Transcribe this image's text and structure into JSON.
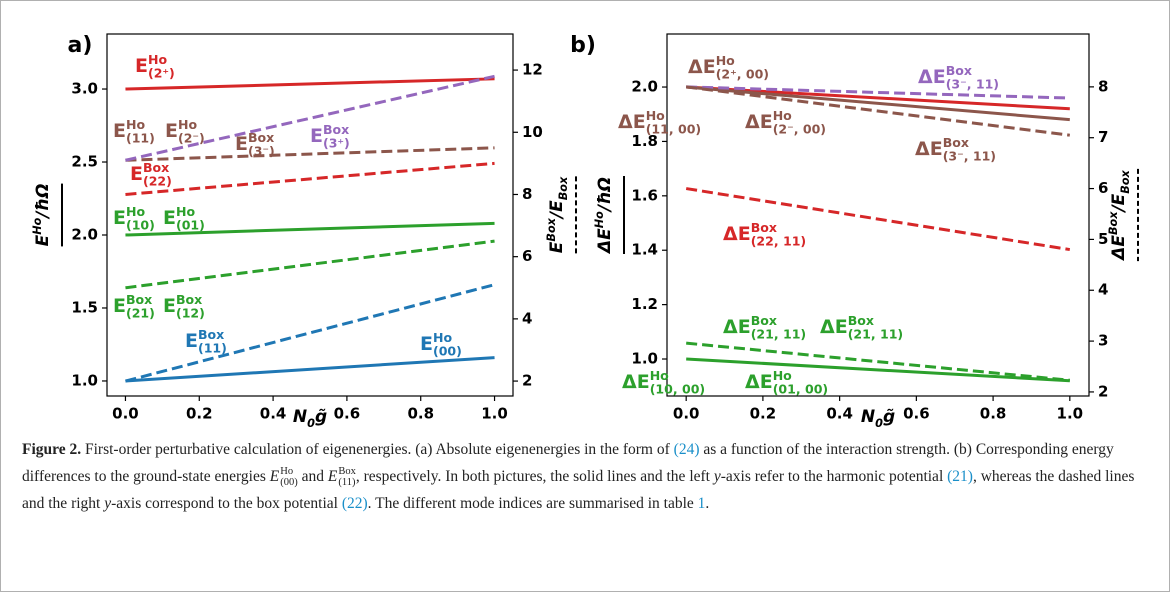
{
  "chart_data": [
    {
      "type": "line",
      "panel": "a)",
      "xlabel": [
        {
          "text": "N"
        },
        {
          "text": "0",
          "pos": "sub"
        },
        {
          "text": "g̃"
        }
      ],
      "ylabel": [
        {
          "text": "E"
        },
        {
          "text": "Ho",
          "pos": "sup"
        },
        {
          "text": "/ħΩ"
        }
      ],
      "y2label": [
        {
          "text": "E"
        },
        {
          "text": "Box",
          "pos": "sup"
        },
        {
          "text": "/E"
        },
        {
          "text": "Box",
          "pos": "sub"
        }
      ],
      "xlim": [
        -0.05,
        1.05
      ],
      "xticks": [
        {
          "value": 0,
          "label": "0.0"
        },
        0.2,
        0.4,
        0.6,
        0.8,
        {
          "value": 1,
          "label": "1.0"
        }
      ],
      "ylim": [
        0.897,
        3.377
      ],
      "yticks": [
        {
          "value": 1,
          "label": "1.0"
        },
        1.5,
        {
          "value": 2,
          "label": "2.0"
        },
        2.5,
        {
          "value": 3,
          "label": "3.0"
        }
      ],
      "y2lim": [
        1.52,
        13.16
      ],
      "y2ticks": [
        2,
        4,
        6,
        8,
        10,
        12
      ],
      "series": [
        {
          "x": [
            0,
            1
          ],
          "values": [
            3.0,
            3.07
          ],
          "color": "#d62728",
          "style": "solid",
          "axis": "y"
        },
        {
          "x": [
            0,
            1
          ],
          "values": [
            9.1,
            9.5
          ],
          "color": "#8c564b",
          "style": "dashed",
          "axis": "y2"
        },
        {
          "x": [
            0,
            1
          ],
          "values": [
            9.1,
            11.8
          ],
          "color": "#9467bd",
          "style": "dashed",
          "axis": "y2"
        },
        {
          "x": [
            0,
            1
          ],
          "values": [
            8.0,
            9.0
          ],
          "color": "#d62728",
          "style": "dashed",
          "axis": "y2"
        },
        {
          "x": [
            0,
            1
          ],
          "values": [
            2.0,
            2.08
          ],
          "color": "#2ca02c",
          "style": "solid",
          "axis": "y"
        },
        {
          "x": [
            0,
            1
          ],
          "values": [
            5.0,
            6.5
          ],
          "color": "#2ca02c",
          "style": "dashed",
          "axis": "y2"
        },
        {
          "x": [
            0,
            1
          ],
          "values": [
            2.0,
            5.1
          ],
          "color": "#1f77b4",
          "style": "dashed",
          "axis": "y2"
        },
        {
          "x": [
            0,
            1
          ],
          "values": [
            1.0,
            1.16
          ],
          "color": "#1f77b4",
          "style": "solid",
          "axis": "y"
        }
      ],
      "annotations": [
        {
          "color": "#d62728",
          "runs": [
            {
              "text": "E"
            },
            {
              "text": "Ho",
              "pos": "sup"
            },
            {
              "text": "(2⁺)",
              "pos": "sub"
            }
          ]
        },
        {
          "color": "#8c564b",
          "runs": [
            {
              "text": "E"
            },
            {
              "text": "Ho",
              "pos": "sup"
            },
            {
              "text": "(11)",
              "pos": "sub"
            }
          ]
        },
        {
          "color": "#8c564b",
          "runs": [
            {
              "text": "E"
            },
            {
              "text": "Ho",
              "pos": "sup"
            },
            {
              "text": "(2⁻)",
              "pos": "sub"
            }
          ]
        },
        {
          "color": "#8c564b",
          "runs": [
            {
              "text": "E"
            },
            {
              "text": "Box",
              "pos": "sup"
            },
            {
              "text": "(3⁻)",
              "pos": "sub"
            }
          ]
        },
        {
          "color": "#9467bd",
          "runs": [
            {
              "text": "E"
            },
            {
              "text": "Box",
              "pos": "sup"
            },
            {
              "text": "(3⁺)",
              "pos": "sub"
            }
          ]
        },
        {
          "color": "#d62728",
          "runs": [
            {
              "text": "E"
            },
            {
              "text": "Box",
              "pos": "sup"
            },
            {
              "text": "(22)",
              "pos": "sub"
            }
          ]
        },
        {
          "color": "#2ca02c",
          "runs": [
            {
              "text": "E"
            },
            {
              "text": "Ho",
              "pos": "sup"
            },
            {
              "text": "(10)",
              "pos": "sub"
            }
          ]
        },
        {
          "color": "#2ca02c",
          "runs": [
            {
              "text": "E"
            },
            {
              "text": "Ho",
              "pos": "sup"
            },
            {
              "text": "(01)",
              "pos": "sub"
            }
          ]
        },
        {
          "color": "#2ca02c",
          "runs": [
            {
              "text": "E"
            },
            {
              "text": "Box",
              "pos": "sup"
            },
            {
              "text": "(21)",
              "pos": "sub"
            }
          ]
        },
        {
          "color": "#2ca02c",
          "runs": [
            {
              "text": "E"
            },
            {
              "text": "Box",
              "pos": "sup"
            },
            {
              "text": "(12)",
              "pos": "sub"
            }
          ]
        },
        {
          "color": "#1f77b4",
          "runs": [
            {
              "text": "E"
            },
            {
              "text": "Box",
              "pos": "sup"
            },
            {
              "text": "(11)",
              "pos": "sub"
            }
          ]
        },
        {
          "color": "#1f77b4",
          "runs": [
            {
              "text": "E"
            },
            {
              "text": "Ho",
              "pos": "sup"
            },
            {
              "text": "(00)",
              "pos": "sub"
            }
          ]
        }
      ]
    },
    {
      "type": "line",
      "panel": "b)",
      "xlabel": [
        {
          "text": "N"
        },
        {
          "text": "0",
          "pos": "sub"
        },
        {
          "text": "g̃"
        }
      ],
      "ylabel": [
        {
          "text": "ΔE"
        },
        {
          "text": "Ho",
          "pos": "sup"
        },
        {
          "text": "/ħΩ"
        }
      ],
      "y2label": [
        {
          "text": "ΔE"
        },
        {
          "text": "Box",
          "pos": "sup"
        },
        {
          "text": "/E"
        },
        {
          "text": "Box",
          "pos": "sub"
        }
      ],
      "xlim": [
        -0.05,
        1.05
      ],
      "xticks": [
        {
          "value": 0,
          "label": "0.0"
        },
        0.2,
        0.4,
        0.6,
        0.8,
        {
          "value": 1,
          "label": "1.0"
        }
      ],
      "ylim": [
        0.864,
        2.195
      ],
      "yticks": [
        {
          "value": 1,
          "label": "1.0"
        },
        1.2,
        1.4,
        1.6,
        1.8,
        {
          "value": 2,
          "label": "2.0"
        }
      ],
      "y2lim": [
        1.92,
        9.04
      ],
      "y2ticks": [
        2,
        3,
        4,
        5,
        6,
        7,
        8
      ],
      "series": [
        {
          "x": [
            0,
            1
          ],
          "values": [
            2.0,
            1.92
          ],
          "color": "#d62728",
          "style": "solid",
          "axis": "y"
        },
        {
          "x": [
            0,
            1
          ],
          "values": [
            2.0,
            1.88
          ],
          "color": "#8c564b",
          "style": "solid",
          "axis": "y"
        },
        {
          "x": [
            0,
            1
          ],
          "values": [
            8.0,
            7.78
          ],
          "color": "#9467bd",
          "style": "dashed",
          "axis": "y2"
        },
        {
          "x": [
            0,
            1
          ],
          "values": [
            8.0,
            7.05
          ],
          "color": "#8c564b",
          "style": "dashed",
          "axis": "y2"
        },
        {
          "x": [
            0,
            1
          ],
          "values": [
            6.0,
            4.8
          ],
          "color": "#d62728",
          "style": "dashed",
          "axis": "y2"
        },
        {
          "x": [
            0,
            1
          ],
          "values": [
            2.96,
            2.23
          ],
          "color": "#2ca02c",
          "style": "dashed",
          "axis": "y2"
        },
        {
          "x": [
            0,
            1
          ],
          "values": [
            1.0,
            0.92
          ],
          "color": "#2ca02c",
          "style": "solid",
          "axis": "y"
        }
      ],
      "annotations": [
        {
          "color": "#8c564b",
          "runs": [
            {
              "text": "ΔE"
            },
            {
              "text": "Ho",
              "pos": "sup"
            },
            {
              "text": "(2⁺, 00)",
              "pos": "sub"
            }
          ]
        },
        {
          "color": "#9467bd",
          "runs": [
            {
              "text": "ΔE"
            },
            {
              "text": "Box",
              "pos": "sup"
            },
            {
              "text": "(3⁻, 11)",
              "pos": "sub"
            }
          ]
        },
        {
          "color": "#8c564b",
          "runs": [
            {
              "text": "ΔE"
            },
            {
              "text": "Ho",
              "pos": "sup"
            },
            {
              "text": "(11, 00)",
              "pos": "sub"
            }
          ]
        },
        {
          "color": "#8c564b",
          "runs": [
            {
              "text": "ΔE"
            },
            {
              "text": "Ho",
              "pos": "sup"
            },
            {
              "text": "(2⁻, 00)",
              "pos": "sub"
            }
          ]
        },
        {
          "color": "#8c564b",
          "runs": [
            {
              "text": "ΔE"
            },
            {
              "text": "Box",
              "pos": "sup"
            },
            {
              "text": "(3⁻, 11)",
              "pos": "sub"
            }
          ]
        },
        {
          "color": "#d62728",
          "runs": [
            {
              "text": "ΔE"
            },
            {
              "text": "Box",
              "pos": "sup"
            },
            {
              "text": "(22, 11)",
              "pos": "sub"
            }
          ]
        },
        {
          "color": "#2ca02c",
          "runs": [
            {
              "text": "ΔE"
            },
            {
              "text": "Box",
              "pos": "sup"
            },
            {
              "text": "(21, 11)",
              "pos": "sub"
            }
          ]
        },
        {
          "color": "#2ca02c",
          "runs": [
            {
              "text": "ΔE"
            },
            {
              "text": "Box",
              "pos": "sup"
            },
            {
              "text": "(21, 11)",
              "pos": "sub"
            }
          ]
        },
        {
          "color": "#2ca02c",
          "runs": [
            {
              "text": "ΔE"
            },
            {
              "text": "Ho",
              "pos": "sup"
            },
            {
              "text": "(10, 00)",
              "pos": "sub"
            }
          ]
        },
        {
          "color": "#2ca02c",
          "runs": [
            {
              "text": "ΔE"
            },
            {
              "text": "Ho",
              "pos": "sup"
            },
            {
              "text": "(01, 00)",
              "pos": "sub"
            }
          ]
        }
      ]
    }
  ],
  "caption": [
    {
      "text": "Figure 2.",
      "style": "bold"
    },
    {
      "text": " First-order perturbative calculation of eigenenergies. (a) Absolute eigenenergies in the form of "
    },
    {
      "text": "(24)",
      "style": "link"
    },
    {
      "text": " as a function of the interaction strength. (b) Corresponding energy differences to the ground-state energies "
    },
    {
      "base": "E",
      "sup": "Ho",
      "sub": "(00)"
    },
    {
      "text": " and "
    },
    {
      "base": "E",
      "sup": "Box",
      "sub": "(11)"
    },
    {
      "text": ", respectively. In both pictures, the solid lines and the left "
    },
    {
      "text": "y",
      "style": "italic"
    },
    {
      "text": "-axis refer to the harmonic potential "
    },
    {
      "text": "(21)",
      "style": "link"
    },
    {
      "text": ", whereas the dashed lines and the right "
    },
    {
      "text": "y",
      "style": "italic"
    },
    {
      "text": "-axis correspond to the box potential "
    },
    {
      "text": "(22)",
      "style": "link"
    },
    {
      "text": ". The different mode indices are summarised in table "
    },
    {
      "text": "1",
      "style": "link"
    },
    {
      "text": "."
    }
  ]
}
